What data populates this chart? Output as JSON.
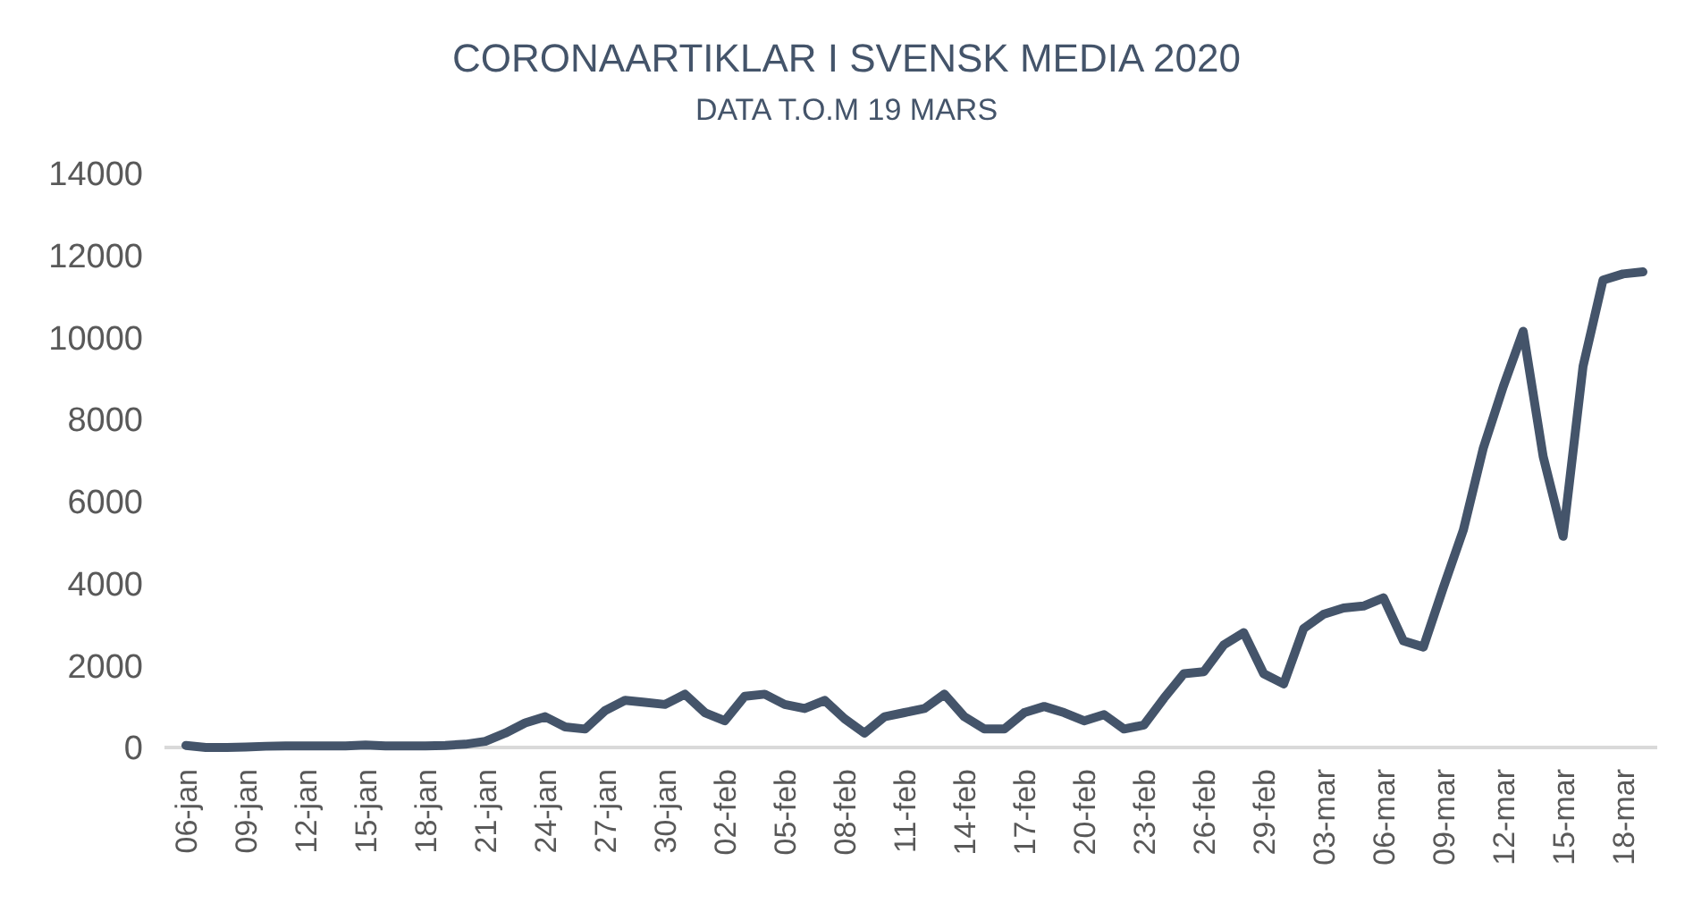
{
  "chart_data": {
    "type": "line",
    "title": "CORONAARTIKLAR I SVENSK MEDIA 2020",
    "subtitle": "DATA T.O.M 19 MARS",
    "categories": [
      "06-jan",
      null,
      null,
      "09-jan",
      null,
      null,
      "12-jan",
      null,
      null,
      "15-jan",
      null,
      null,
      "18-jan",
      null,
      null,
      "21-jan",
      null,
      null,
      "24-jan",
      null,
      null,
      "27-jan",
      null,
      null,
      "30-jan",
      null,
      null,
      "02-feb",
      null,
      null,
      "05-feb",
      null,
      null,
      "08-feb",
      null,
      null,
      "11-feb",
      null,
      null,
      "14-feb",
      null,
      null,
      "17-feb",
      null,
      null,
      "20-feb",
      null,
      null,
      "23-feb",
      null,
      null,
      "26-feb",
      null,
      null,
      "29-feb",
      null,
      null,
      "03-mar",
      null,
      null,
      "06-mar",
      null,
      null,
      "09-mar",
      null,
      null,
      "12-mar",
      null,
      null,
      "15-mar",
      null,
      null,
      "18-mar",
      null
    ],
    "series": [
      {
        "color": "#44546a",
        "values": [
          50,
          0,
          0,
          10,
          30,
          40,
          40,
          40,
          40,
          60,
          40,
          40,
          40,
          50,
          80,
          150,
          350,
          600,
          750,
          500,
          450,
          900,
          1150,
          1100,
          1050,
          1300,
          850,
          650,
          1250,
          1300,
          1050,
          950,
          1150,
          700,
          350,
          750,
          850,
          950,
          1300,
          750,
          450,
          450,
          850,
          1000,
          850,
          650,
          800,
          450,
          550,
          1200,
          1800,
          1850,
          2500,
          2800,
          1800,
          1550,
          2900,
          3250,
          3400,
          3450,
          3650,
          2600,
          2450,
          3900,
          5300,
          7300,
          8800,
          10150,
          7100,
          5150,
          9300,
          11400,
          11550,
          11600
        ]
      }
    ],
    "ylim": [
      0,
      14000
    ],
    "yticks": [
      0,
      2000,
      4000,
      6000,
      8000,
      10000,
      12000,
      14000
    ],
    "grid": false,
    "marker": "none",
    "line_style": "solid"
  }
}
